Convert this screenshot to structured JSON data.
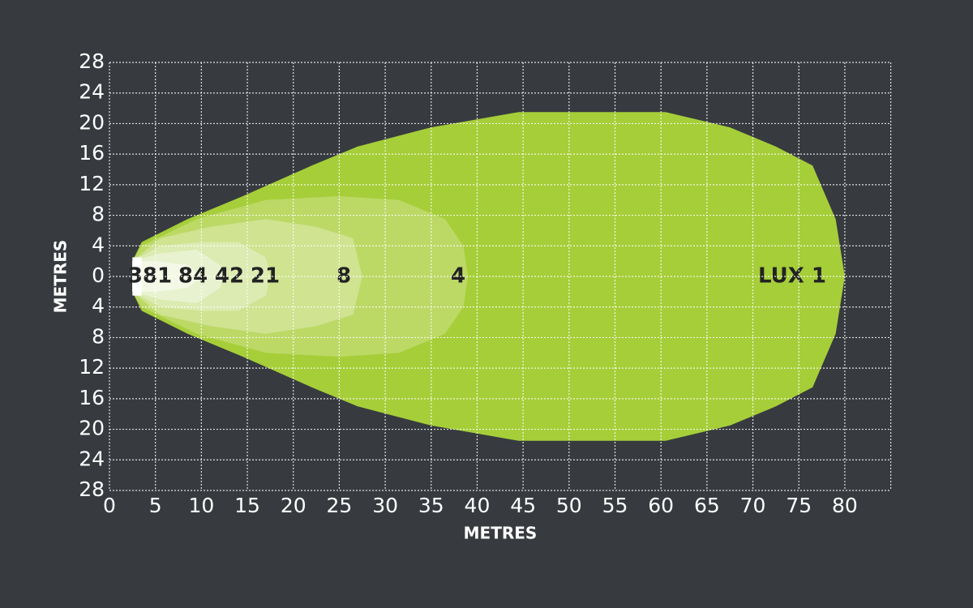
{
  "chart_data": {
    "type": "contour",
    "xlabel": "METRES",
    "ylabel": "METRES",
    "xlim": [
      0,
      85
    ],
    "ylim": [
      -28,
      28
    ],
    "xticks": [
      0,
      5,
      10,
      15,
      20,
      25,
      30,
      35,
      40,
      45,
      50,
      55,
      60,
      65,
      70,
      75,
      80
    ],
    "yticks": [
      28,
      24,
      20,
      16,
      12,
      8,
      4,
      0,
      {
        "value": -4,
        "label": "4"
      },
      {
        "value": -8,
        "label": "8"
      },
      {
        "value": -12,
        "label": "12"
      },
      {
        "value": -16,
        "label": "16"
      },
      {
        "value": -20,
        "label": "20"
      },
      {
        "value": -24,
        "label": "24"
      },
      {
        "value": -28,
        "label": "28"
      }
    ],
    "grid": true,
    "series": [
      {
        "name": "LUX 1",
        "color": "#a6ce39",
        "x": [
          2.5,
          3.5,
          8.5,
          14.5,
          22,
          27,
          35,
          44.5,
          54.5,
          60.5,
          67.5,
          72.5,
          76.5,
          79,
          80,
          79,
          76.5,
          72.5,
          67.5,
          60.5,
          54.5,
          44.5,
          35,
          27,
          22,
          14.5,
          8.5,
          3.5,
          2.5
        ],
        "y": [
          2,
          4.5,
          7.5,
          10.5,
          14.5,
          17,
          19.5,
          21.5,
          21.5,
          21.5,
          19.5,
          17,
          14.5,
          7.5,
          0,
          -7.5,
          -14.5,
          -17,
          -19.5,
          -21.5,
          -21.5,
          -21.5,
          -19.5,
          -17,
          -14.5,
          -10.5,
          -7.5,
          -4.5,
          -2
        ]
      },
      {
        "name": "4",
        "color": "#bcd966",
        "x": [
          2.5,
          3.5,
          9.5,
          17,
          25,
          31.5,
          36.5,
          38.5,
          39,
          38.5,
          36.5,
          31.5,
          25,
          17,
          9.5,
          3.5,
          2.5
        ],
        "y": [
          2,
          4,
          7.5,
          10,
          10.5,
          10,
          7.5,
          4,
          0,
          -4,
          -7.5,
          -10,
          -10.5,
          -10,
          -7.5,
          -4,
          -2
        ]
      },
      {
        "name": "8",
        "color": "#cfe390",
        "x": [
          2.5,
          5.5,
          11,
          17,
          22.5,
          26.5,
          27.5,
          26.5,
          22.5,
          17,
          11,
          5.5,
          2.5
        ],
        "y": [
          2,
          5,
          6.5,
          7.5,
          6.5,
          5,
          0,
          -5,
          -6.5,
          -7.5,
          -6.5,
          -5,
          -2
        ]
      },
      {
        "name": "21",
        "color": "#dcebb2",
        "x": [
          2.5,
          5.5,
          10,
          14,
          17,
          17.5,
          17,
          14,
          10,
          5.5,
          2.5
        ],
        "y": [
          2,
          4,
          4.5,
          4.5,
          2.5,
          0,
          -2.5,
          -4.5,
          -4.5,
          -4,
          -2
        ]
      },
      {
        "name": "42",
        "color": "#e9f2d0",
        "x": [
          2.5,
          5.5,
          9.5,
          12,
          12.5,
          12,
          9.5,
          5.5,
          2.5
        ],
        "y": [
          2,
          3,
          3.5,
          1.5,
          0,
          -1.5,
          -3.5,
          -3,
          -2
        ]
      },
      {
        "name": "84",
        "color": "#f4f8e6",
        "x": [
          2.5,
          5,
          8.5,
          10,
          8.5,
          5,
          2.5
        ],
        "y": [
          2,
          2,
          1.5,
          0,
          -1.5,
          -2,
          -2
        ]
      },
      {
        "name": "381",
        "color": "#ffffff",
        "x": [
          2.5,
          3.5,
          3.5,
          2.5
        ],
        "y": [
          2.5,
          2.5,
          -2.5,
          -2.5
        ]
      }
    ]
  }
}
